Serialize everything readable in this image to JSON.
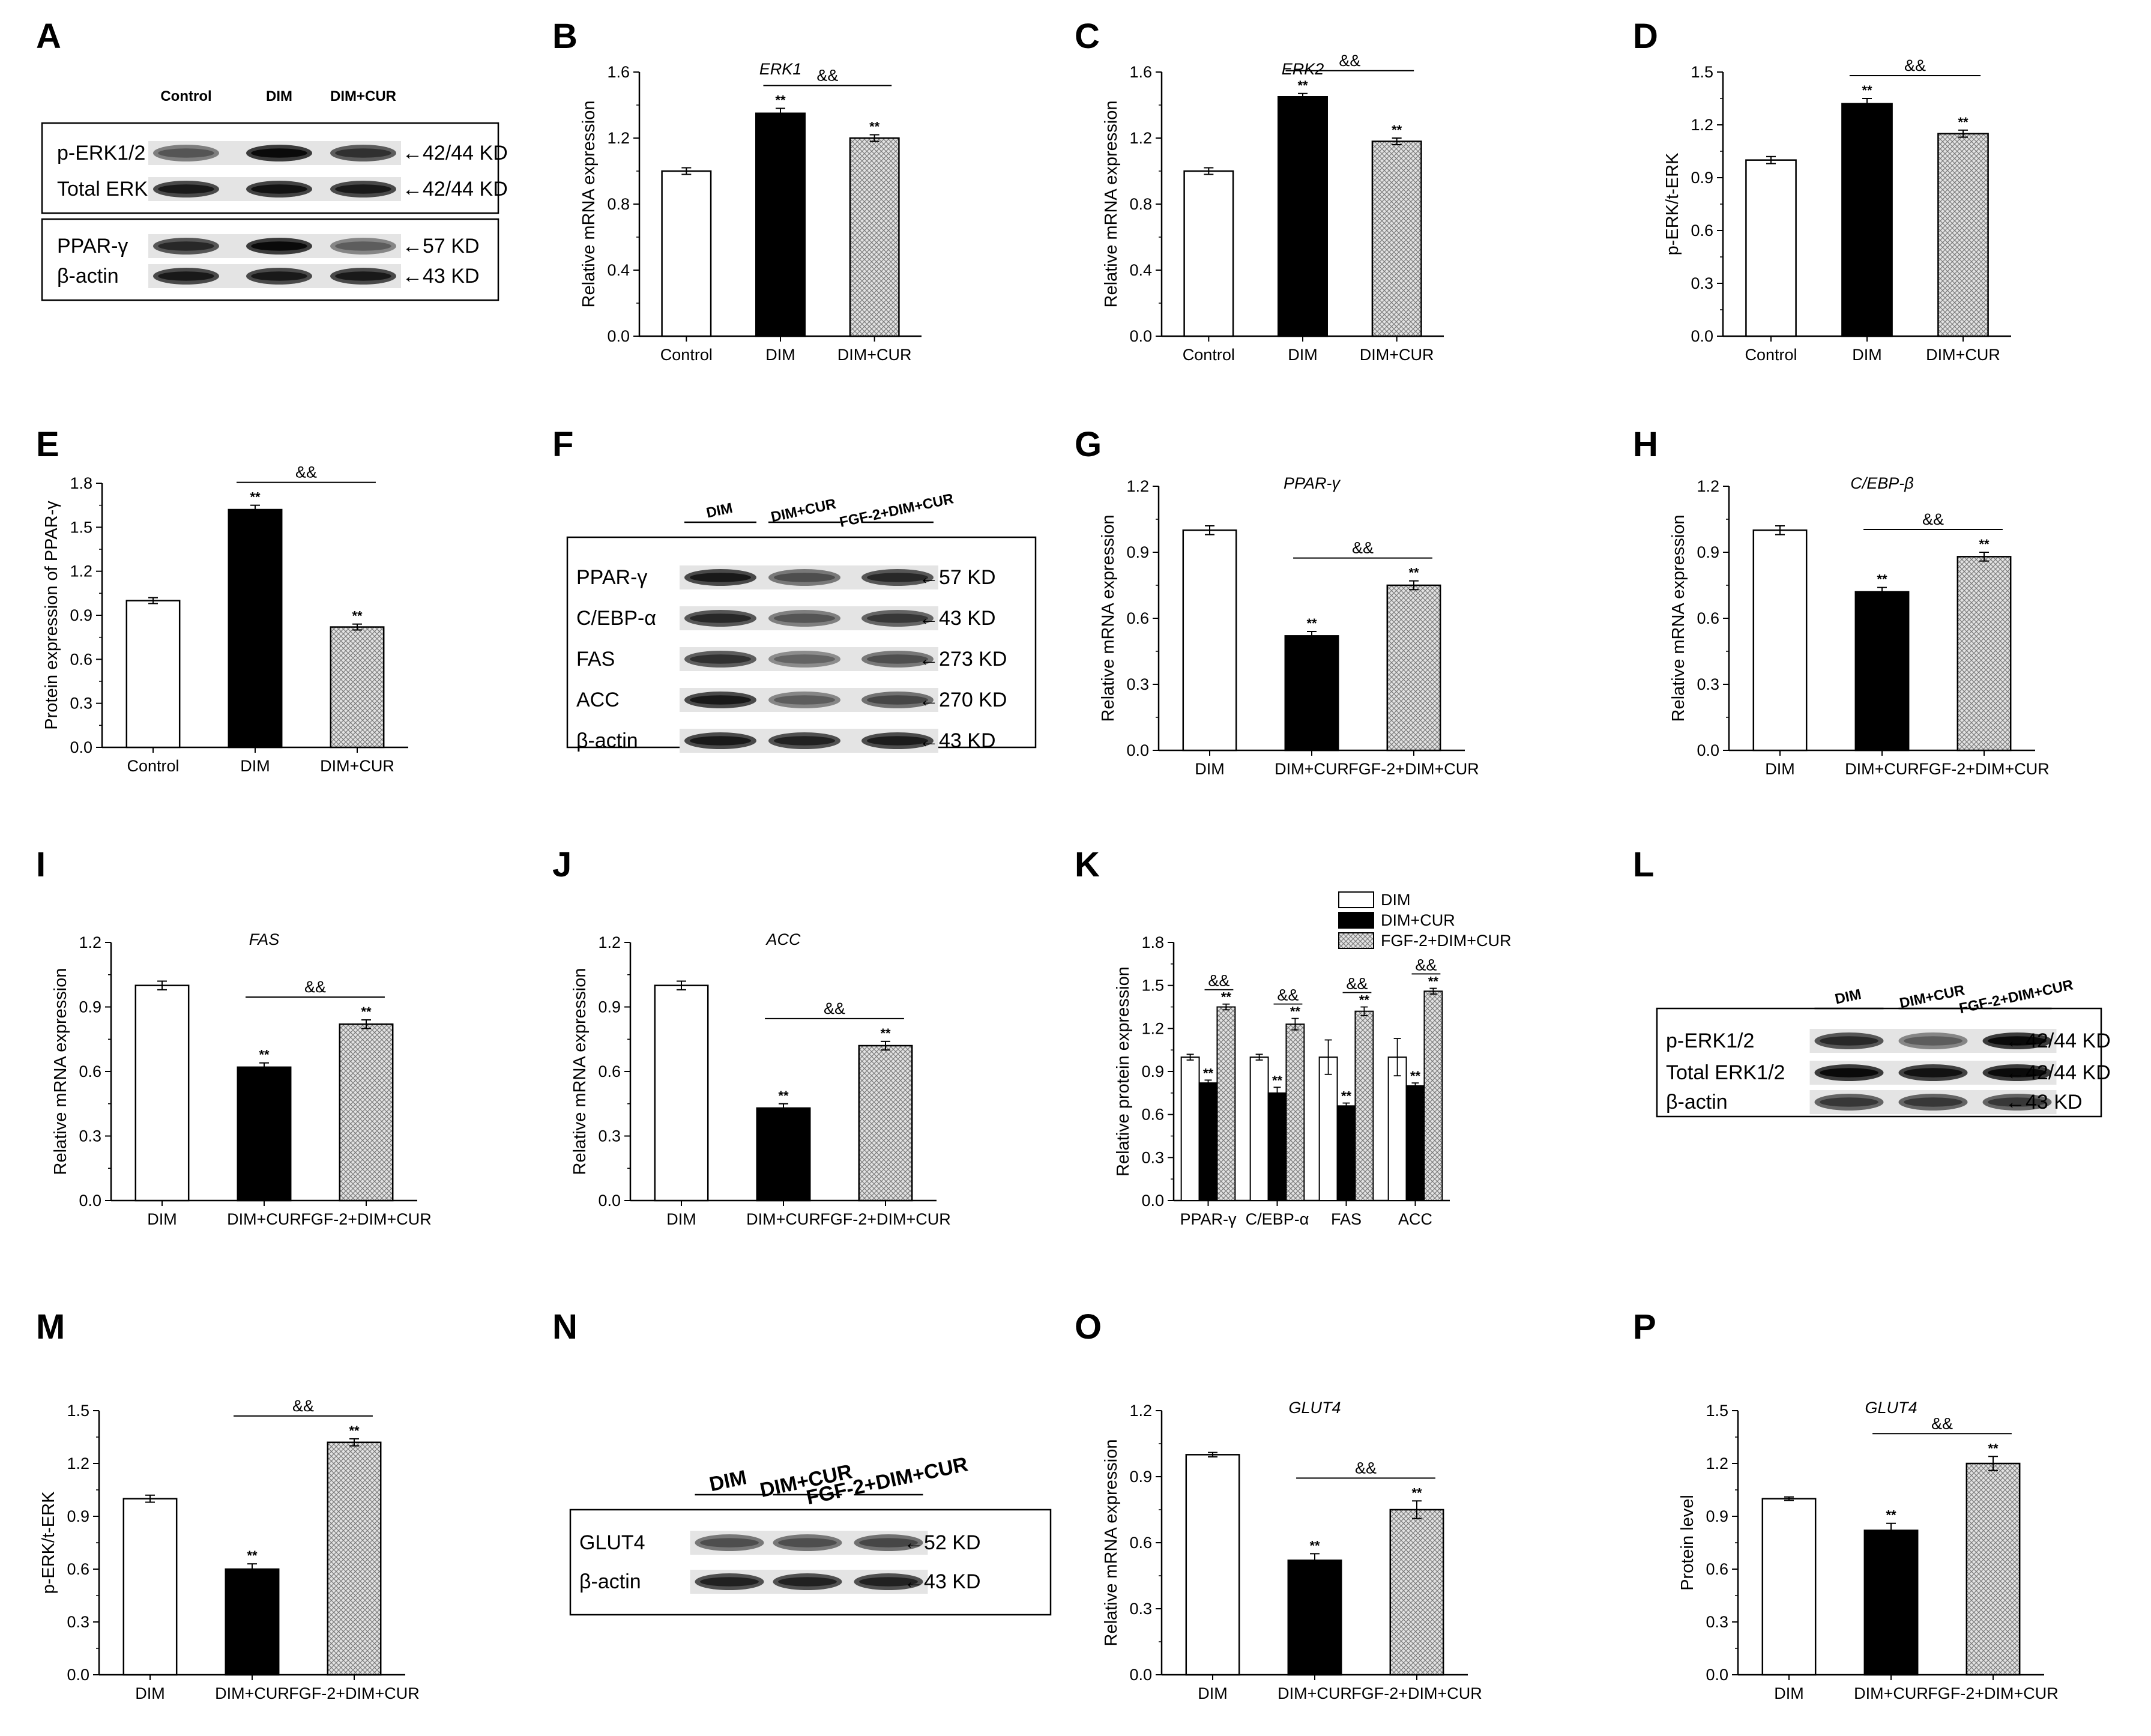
{
  "panels": [
    {
      "id": "A",
      "type": "blot",
      "headers": [
        "Control",
        "DIM",
        "DIM+CUR"
      ],
      "boxes": [
        {
          "rows": [
            {
              "name": "p-ERK1/2",
              "size": "←42/44 KD"
            },
            {
              "name": "Total ERK1/2",
              "size": "←42/44 KD"
            }
          ]
        },
        {
          "rows": [
            {
              "name": "PPAR-γ",
              "size": "←57 KD"
            },
            {
              "name": "β-actin",
              "size": "←43 KD"
            }
          ]
        }
      ]
    },
    {
      "id": "B",
      "type": "bar",
      "chart_data": {
        "type": "bar",
        "title": "ERK1",
        "ylabel": "Relative mRNA expression",
        "categories": [
          "Control",
          "DIM",
          "DIM+CUR"
        ],
        "values": [
          1.0,
          1.35,
          1.2
        ],
        "errors": [
          0.02,
          0.03,
          0.02
        ],
        "ylim": [
          0,
          1.6
        ],
        "yticks": [
          "0.0",
          "0.4",
          "0.8",
          "1.2",
          "1.6"
        ],
        "stars": [
          "",
          "**",
          "**"
        ],
        "bracket": {
          "from": 1,
          "to": 2,
          "label": "&&"
        }
      }
    },
    {
      "id": "C",
      "type": "bar",
      "chart_data": {
        "type": "bar",
        "title": "ERK2",
        "ylabel": "Relative mRNA expression",
        "categories": [
          "Control",
          "DIM",
          "DIM+CUR"
        ],
        "values": [
          1.0,
          1.45,
          1.18
        ],
        "errors": [
          0.02,
          0.02,
          0.02
        ],
        "ylim": [
          0,
          1.6
        ],
        "yticks": [
          "0.0",
          "0.4",
          "0.8",
          "1.2",
          "1.6"
        ],
        "stars": [
          "",
          "**",
          "**"
        ],
        "bracket": {
          "from": 1,
          "to": 2,
          "label": "&&"
        }
      }
    },
    {
      "id": "D",
      "type": "bar",
      "chart_data": {
        "type": "bar",
        "title": "",
        "ylabel": "p-ERK/t-ERK",
        "categories": [
          "Control",
          "DIM",
          "DIM+CUR"
        ],
        "values": [
          1.0,
          1.32,
          1.15
        ],
        "errors": [
          0.02,
          0.03,
          0.02
        ],
        "ylim": [
          0,
          1.5
        ],
        "yticks": [
          "0.0",
          "0.3",
          "0.6",
          "0.9",
          "1.2",
          "1.5"
        ],
        "stars": [
          "",
          "**",
          "**"
        ],
        "bracket": {
          "from": 1,
          "to": 2,
          "label": "&&"
        }
      }
    },
    {
      "id": "E",
      "type": "bar",
      "chart_data": {
        "type": "bar",
        "title": "",
        "ylabel": "Protein expression of PPAR-γ",
        "categories": [
          "Control",
          "DIM",
          "DIM+CUR"
        ],
        "values": [
          1.0,
          1.62,
          0.82
        ],
        "errors": [
          0.02,
          0.03,
          0.02
        ],
        "ylim": [
          0,
          1.8
        ],
        "yticks": [
          "0.0",
          "0.3",
          "0.6",
          "0.9",
          "1.2",
          "1.5",
          "1.8"
        ],
        "stars": [
          "",
          "**",
          "**"
        ],
        "bracket": {
          "from": 1,
          "to": 2,
          "label": "&&"
        }
      }
    },
    {
      "id": "F",
      "type": "blot",
      "headers": [
        "DIM",
        "DIM+CUR",
        "FGF-2+DIM+CUR"
      ],
      "boxes": [
        {
          "rows": [
            {
              "name": "PPAR-γ",
              "size": "←57  KD"
            },
            {
              "name": "C/EBP-α",
              "size": "←43  KD"
            },
            {
              "name": "FAS",
              "size": "←273 KD"
            },
            {
              "name": "ACC",
              "size": "←270 KD"
            },
            {
              "name": "β-actin",
              "size": "←43  KD"
            }
          ]
        }
      ]
    },
    {
      "id": "G",
      "type": "bar",
      "chart_data": {
        "type": "bar",
        "title": "PPAR-γ",
        "ylabel": "Relative mRNA expression",
        "categories": [
          "DIM",
          "DIM+CUR",
          "FGF-2+DIM+CUR"
        ],
        "values": [
          1.0,
          0.52,
          0.75
        ],
        "errors": [
          0.02,
          0.02,
          0.02
        ],
        "ylim": [
          0,
          1.2
        ],
        "yticks": [
          "0.0",
          "0.3",
          "0.6",
          "0.9",
          "1.2"
        ],
        "stars": [
          "",
          "**",
          "**"
        ],
        "bracket": {
          "from": 1,
          "to": 2,
          "label": "&&"
        }
      }
    },
    {
      "id": "H",
      "type": "bar",
      "chart_data": {
        "type": "bar",
        "title": "C/EBP-β",
        "ylabel": "Relative mRNA expression",
        "categories": [
          "DIM",
          "DIM+CUR",
          "FGF-2+DIM+CUR"
        ],
        "values": [
          1.0,
          0.72,
          0.88
        ],
        "errors": [
          0.02,
          0.02,
          0.02
        ],
        "ylim": [
          0,
          1.2
        ],
        "yticks": [
          "0.0",
          "0.3",
          "0.6",
          "0.9",
          "1.2"
        ],
        "stars": [
          "",
          "**",
          "**"
        ],
        "bracket": {
          "from": 1,
          "to": 2,
          "label": "&&"
        }
      }
    },
    {
      "id": "I",
      "type": "bar",
      "chart_data": {
        "type": "bar",
        "title": "FAS",
        "ylabel": "Relative mRNA expression",
        "categories": [
          "DIM",
          "DIM+CUR",
          "FGF-2+DIM+CUR"
        ],
        "values": [
          1.0,
          0.62,
          0.82
        ],
        "errors": [
          0.02,
          0.02,
          0.02
        ],
        "ylim": [
          0,
          1.2
        ],
        "yticks": [
          "0.0",
          "0.3",
          "0.6",
          "0.9",
          "1.2"
        ],
        "stars": [
          "",
          "**",
          "**"
        ],
        "bracket": {
          "from": 1,
          "to": 2,
          "label": "&&"
        }
      }
    },
    {
      "id": "J",
      "type": "bar",
      "chart_data": {
        "type": "bar",
        "title": "ACC",
        "ylabel": "Relative mRNA expression",
        "categories": [
          "DIM",
          "DIM+CUR",
          "FGF-2+DIM+CUR"
        ],
        "values": [
          1.0,
          0.43,
          0.72
        ],
        "errors": [
          0.02,
          0.02,
          0.02
        ],
        "ylim": [
          0,
          1.2
        ],
        "yticks": [
          "0.0",
          "0.3",
          "0.6",
          "0.9",
          "1.2"
        ],
        "stars": [
          "",
          "**",
          "**"
        ],
        "bracket": {
          "from": 1,
          "to": 2,
          "label": "&&"
        }
      }
    },
    {
      "id": "K",
      "type": "groupbar",
      "chart_data": {
        "type": "bar",
        "ylabel": "Relative protein expression",
        "categories": [
          "PPAR-γ",
          "C/EBP-α",
          "FAS",
          "ACC"
        ],
        "series": [
          {
            "name": "DIM",
            "values": [
              1.0,
              1.0,
              1.0,
              1.0
            ],
            "errors": [
              0.02,
              0.02,
              0.12,
              0.13
            ]
          },
          {
            "name": "DIM+CUR",
            "values": [
              0.82,
              0.75,
              0.66,
              0.8
            ],
            "errors": [
              0.02,
              0.04,
              0.02,
              0.02
            ]
          },
          {
            "name": "FGF-2+DIM+CUR",
            "values": [
              1.35,
              1.23,
              1.32,
              1.46
            ],
            "errors": [
              0.02,
              0.04,
              0.03,
              0.02
            ]
          }
        ],
        "ylim": [
          0,
          1.8
        ],
        "yticks": [
          "0.0",
          "0.3",
          "0.6",
          "0.9",
          "1.2",
          "1.5",
          "1.8"
        ],
        "stars": [
          "**",
          "**"
        ],
        "bracket_label": "&&",
        "legend_position": "top"
      }
    },
    {
      "id": "L",
      "type": "blot",
      "headers": [
        "DIM",
        "DIM+CUR",
        "FGF-2+DIM+CUR"
      ],
      "boxes": [
        {
          "rows": [
            {
              "name": "p-ERK1/2",
              "size": "←42/44 KD"
            },
            {
              "name": "Total ERK1/2",
              "size": "←42/44 KD"
            },
            {
              "name": "β-actin",
              "size": "←43 KD"
            }
          ]
        }
      ]
    },
    {
      "id": "M",
      "type": "bar",
      "chart_data": {
        "type": "bar",
        "title": "",
        "ylabel": "p-ERK/t-ERK",
        "categories": [
          "DIM",
          "DIM+CUR",
          "FGF-2+DIM+CUR"
        ],
        "values": [
          1.0,
          0.6,
          1.32
        ],
        "errors": [
          0.02,
          0.03,
          0.02
        ],
        "ylim": [
          0,
          1.5
        ],
        "yticks": [
          "0.0",
          "0.3",
          "0.6",
          "0.9",
          "1.2",
          "1.5"
        ],
        "stars": [
          "",
          "**",
          "**"
        ],
        "bracket": {
          "from": 1,
          "to": 2,
          "label": "&&"
        }
      }
    },
    {
      "id": "N",
      "type": "blot",
      "headers": [
        "DIM",
        "DIM+CUR",
        "FGF-2+DIM+CUR"
      ],
      "boxes": [
        {
          "rows": [
            {
              "name": "GLUT4",
              "size": "←52 KD"
            },
            {
              "name": "β-actin",
              "size": "←43 KD"
            }
          ]
        }
      ]
    },
    {
      "id": "O",
      "type": "bar",
      "chart_data": {
        "type": "bar",
        "title": "GLUT4",
        "ylabel": "Relative mRNA expression",
        "categories": [
          "DIM",
          "DIM+CUR",
          "FGF-2+DIM+CUR"
        ],
        "values": [
          1.0,
          0.52,
          0.75
        ],
        "errors": [
          0.01,
          0.03,
          0.04
        ],
        "ylim": [
          0,
          1.2
        ],
        "yticks": [
          "0.0",
          "0.3",
          "0.6",
          "0.9",
          "1.2"
        ],
        "stars": [
          "",
          "**",
          "**"
        ],
        "bracket": {
          "from": 1,
          "to": 2,
          "label": "&&"
        }
      }
    },
    {
      "id": "P",
      "type": "bar",
      "chart_data": {
        "type": "bar",
        "title": "GLUT4",
        "ylabel": "Protein level",
        "categories": [
          "DIM",
          "DIM+CUR",
          "FGF-2+DIM+CUR"
        ],
        "values": [
          1.0,
          0.82,
          1.2
        ],
        "errors": [
          0.01,
          0.04,
          0.04
        ],
        "ylim": [
          0,
          1.5
        ],
        "yticks": [
          "0.0",
          "0.3",
          "0.6",
          "0.9",
          "1.2",
          "1.5"
        ],
        "stars": [
          "",
          "**",
          "**"
        ],
        "bracket": {
          "from": 1,
          "to": 2,
          "label": "&&"
        }
      }
    }
  ]
}
